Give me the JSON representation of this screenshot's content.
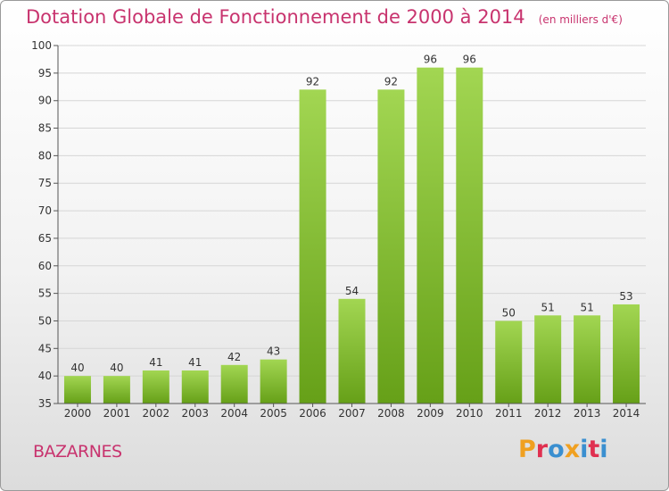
{
  "title": "Dotation Globale de Fonctionnement de 2000 à 2014",
  "unit_label": "(en milliers d'€)",
  "commune": "BAZARNES",
  "brand_letters": [
    "P",
    "r",
    "o",
    "x",
    "i",
    "t",
    "i"
  ],
  "brand_colors": [
    "#f0a020",
    "#e03050",
    "#3a8fd0",
    "#f0a020",
    "#3a8fd0",
    "#e03050",
    "#3a8fd0"
  ],
  "colors": {
    "title": "#c8336e",
    "bar_light": "#a2d652",
    "bar_dark": "#66a018",
    "grid": "#d6d6d6",
    "axis": "#555555"
  },
  "chart_data": {
    "type": "bar",
    "title": "Dotation Globale de Fonctionnement de 2000 à 2014",
    "subtitle": "(en milliers d'€)",
    "xlabel": "",
    "ylabel": "",
    "categories": [
      "2000",
      "2001",
      "2002",
      "2003",
      "2004",
      "2005",
      "2006",
      "2007",
      "2008",
      "2009",
      "2010",
      "2011",
      "2012",
      "2013",
      "2014"
    ],
    "values": [
      40,
      40,
      41,
      41,
      42,
      43,
      92,
      54,
      92,
      96,
      96,
      50,
      51,
      51,
      53
    ],
    "ylim": [
      35,
      100
    ],
    "yticks": [
      35,
      40,
      45,
      50,
      55,
      60,
      65,
      70,
      75,
      80,
      85,
      90,
      95,
      100
    ],
    "grid": true,
    "data_labels": true
  }
}
